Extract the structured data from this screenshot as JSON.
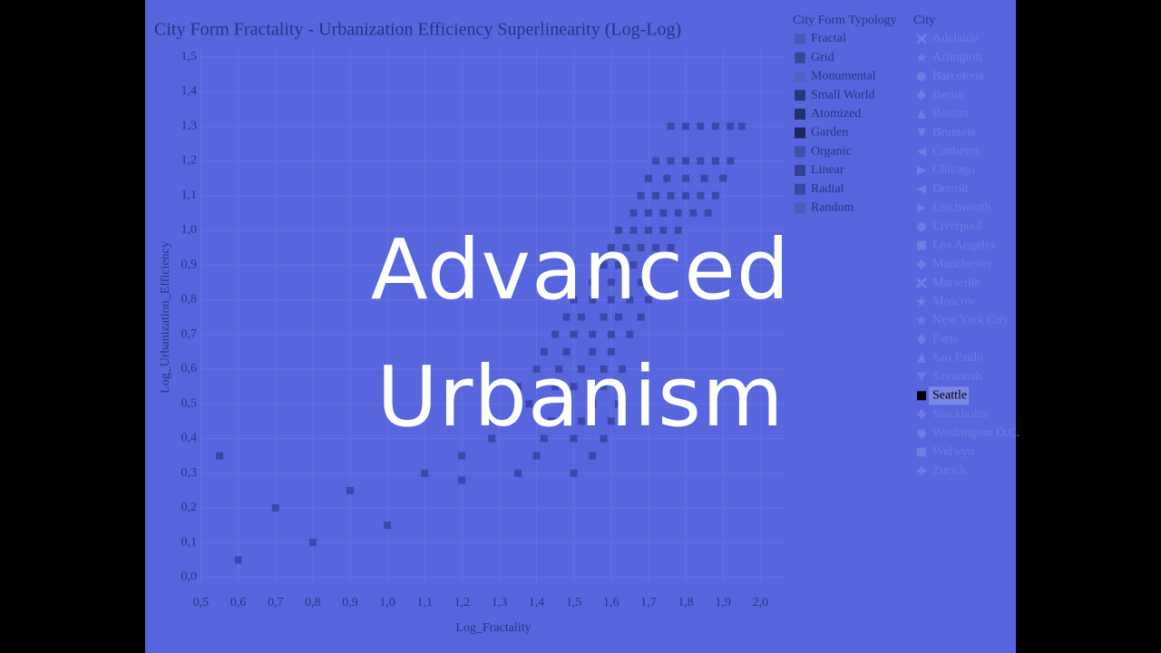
{
  "overlay_title": "Advanced Urbanism",
  "chart_data": {
    "type": "scatter",
    "title": "City Form Fractality - Urbanization Efficiency Superlinearity (Log-Log)",
    "x_label": "Log_Fractality",
    "y_label": "Log_Urbanization_Efficiency",
    "color": "#34409a",
    "grid": true,
    "xlim": [
      0.45,
      2.07
    ],
    "ylim": [
      -0.03,
      1.52
    ],
    "xticks": [
      {
        "value": 0.5,
        "label": "0,5"
      },
      {
        "value": 0.6,
        "label": "0,6"
      },
      {
        "value": 0.7,
        "label": "0,7"
      },
      {
        "value": 0.8,
        "label": "0,8"
      },
      {
        "value": 0.9,
        "label": "0,9"
      },
      {
        "value": 1.0,
        "label": "1,0"
      },
      {
        "value": 1.1,
        "label": "1,1"
      },
      {
        "value": 1.2,
        "label": "1,2"
      },
      {
        "value": 1.3,
        "label": "1,3"
      },
      {
        "value": 1.4,
        "label": "1,4"
      },
      {
        "value": 1.5,
        "label": "1,5"
      },
      {
        "value": 1.6,
        "label": "1,6"
      },
      {
        "value": 1.7,
        "label": "1,7"
      },
      {
        "value": 1.8,
        "label": "1,8"
      },
      {
        "value": 1.9,
        "label": "1,9"
      },
      {
        "value": 2.0,
        "label": "2,0"
      }
    ],
    "yticks": [
      {
        "value": 0.0,
        "label": "0,0"
      },
      {
        "value": 0.1,
        "label": "0,1"
      },
      {
        "value": 0.2,
        "label": "0,2"
      },
      {
        "value": 0.3,
        "label": "0,3"
      },
      {
        "value": 0.4,
        "label": "0,4"
      },
      {
        "value": 0.5,
        "label": "0,5"
      },
      {
        "value": 0.6,
        "label": "0,6"
      },
      {
        "value": 0.7,
        "label": "0,7"
      },
      {
        "value": 0.8,
        "label": "0,8"
      },
      {
        "value": 0.9,
        "label": "0,9"
      },
      {
        "value": 1.0,
        "label": "1,0"
      },
      {
        "value": 1.1,
        "label": "1,1"
      },
      {
        "value": 1.2,
        "label": "1,2"
      },
      {
        "value": 1.3,
        "label": "1,3"
      },
      {
        "value": 1.4,
        "label": "1,4"
      },
      {
        "value": 1.5,
        "label": "1,5"
      }
    ],
    "x": [
      1.76,
      1.8,
      1.84,
      1.88,
      1.92,
      1.95,
      1.72,
      1.76,
      1.8,
      1.84,
      1.88,
      1.92,
      1.7,
      1.75,
      1.8,
      1.85,
      1.9,
      1.68,
      1.72,
      1.76,
      1.8,
      1.84,
      1.88,
      1.66,
      1.7,
      1.74,
      1.78,
      1.82,
      1.86,
      1.62,
      1.66,
      1.7,
      1.74,
      1.78,
      1.6,
      1.64,
      1.68,
      1.72,
      1.76,
      1.58,
      1.62,
      1.66,
      1.7,
      1.55,
      1.6,
      1.64,
      1.68,
      1.5,
      1.55,
      1.6,
      1.65,
      1.7,
      1.48,
      1.52,
      1.58,
      1.62,
      1.68,
      1.45,
      1.5,
      1.55,
      1.6,
      1.65,
      1.42,
      1.48,
      1.55,
      1.6,
      1.4,
      1.46,
      1.52,
      1.58,
      1.63,
      1.35,
      1.45,
      1.5,
      1.58,
      1.38,
      1.48,
      1.55,
      1.62,
      1.33,
      1.44,
      1.52,
      1.6,
      1.28,
      1.42,
      1.5,
      1.58,
      1.2,
      1.4,
      1.55,
      1.1,
      1.35,
      1.5,
      0.55,
      0.7,
      0.9,
      1.0,
      0.8,
      1.2,
      0.6
    ],
    "y": [
      1.3,
      1.3,
      1.3,
      1.3,
      1.3,
      1.3,
      1.2,
      1.2,
      1.2,
      1.2,
      1.2,
      1.2,
      1.15,
      1.15,
      1.15,
      1.15,
      1.15,
      1.1,
      1.1,
      1.1,
      1.1,
      1.1,
      1.1,
      1.05,
      1.05,
      1.05,
      1.05,
      1.05,
      1.05,
      1.0,
      1.0,
      1.0,
      1.0,
      1.0,
      0.95,
      0.95,
      0.95,
      0.95,
      0.95,
      0.9,
      0.9,
      0.9,
      0.9,
      0.85,
      0.85,
      0.85,
      0.85,
      0.8,
      0.8,
      0.8,
      0.8,
      0.8,
      0.75,
      0.75,
      0.75,
      0.75,
      0.75,
      0.7,
      0.7,
      0.7,
      0.7,
      0.7,
      0.65,
      0.65,
      0.65,
      0.65,
      0.6,
      0.6,
      0.6,
      0.6,
      0.6,
      0.55,
      0.55,
      0.55,
      0.55,
      0.5,
      0.5,
      0.5,
      0.5,
      0.45,
      0.45,
      0.45,
      0.45,
      0.4,
      0.4,
      0.4,
      0.4,
      0.35,
      0.35,
      0.35,
      0.3,
      0.3,
      0.3,
      0.35,
      0.2,
      0.25,
      0.15,
      0.1,
      0.28,
      0.05
    ],
    "typology_legend": {
      "title": "City Form Typology",
      "items": [
        {
          "name": "Fractal",
          "color": "#4a58b8"
        },
        {
          "name": "Grid",
          "color": "#3a469a"
        },
        {
          "name": "Monumental",
          "color": "#5262c4"
        },
        {
          "name": "Small World",
          "color": "#2a3580"
        },
        {
          "name": "Atomized",
          "color": "#253070"
        },
        {
          "name": "Garden",
          "color": "#1e2860"
        },
        {
          "name": "Organic",
          "color": "#4050a8"
        },
        {
          "name": "Linear",
          "color": "#343f90"
        },
        {
          "name": "Radial",
          "color": "#3b47a0"
        },
        {
          "name": "Random",
          "color": "#4d5cbc"
        }
      ]
    },
    "city_legend": {
      "title": "City",
      "items": [
        {
          "name": "Adelaide",
          "symbol": "x"
        },
        {
          "name": "Arlington",
          "symbol": "star"
        },
        {
          "name": "Barcelona",
          "symbol": "circle"
        },
        {
          "name": "Berlin",
          "symbol": "diamond"
        },
        {
          "name": "Boston",
          "symbol": "triangle-up"
        },
        {
          "name": "Brussels",
          "symbol": "triangle-down"
        },
        {
          "name": "Canberra",
          "symbol": "triangle-left"
        },
        {
          "name": "Chicago",
          "symbol": "triangle-right"
        },
        {
          "name": "Detroit",
          "symbol": "triangle-left"
        },
        {
          "name": "Letchworth",
          "symbol": "triangle-right"
        },
        {
          "name": "Liverpool",
          "symbol": "circle"
        },
        {
          "name": "Los Angeles",
          "symbol": "square"
        },
        {
          "name": "Manchester",
          "symbol": "cross"
        },
        {
          "name": "Marseille",
          "symbol": "x"
        },
        {
          "name": "Moscow",
          "symbol": "star"
        },
        {
          "name": "New York City",
          "symbol": "star"
        },
        {
          "name": "Paris",
          "symbol": "diamond"
        },
        {
          "name": "Sao Paulo",
          "symbol": "triangle-up"
        },
        {
          "name": "Savannah",
          "symbol": "triangle-down"
        },
        {
          "name": "Seattle",
          "symbol": "square",
          "active": true
        },
        {
          "name": "Stockholm",
          "symbol": "cross"
        },
        {
          "name": "Washington D.C.",
          "symbol": "circle"
        },
        {
          "name": "Welwyn",
          "symbol": "square"
        },
        {
          "name": "Zurich",
          "symbol": "cross"
        }
      ]
    }
  }
}
